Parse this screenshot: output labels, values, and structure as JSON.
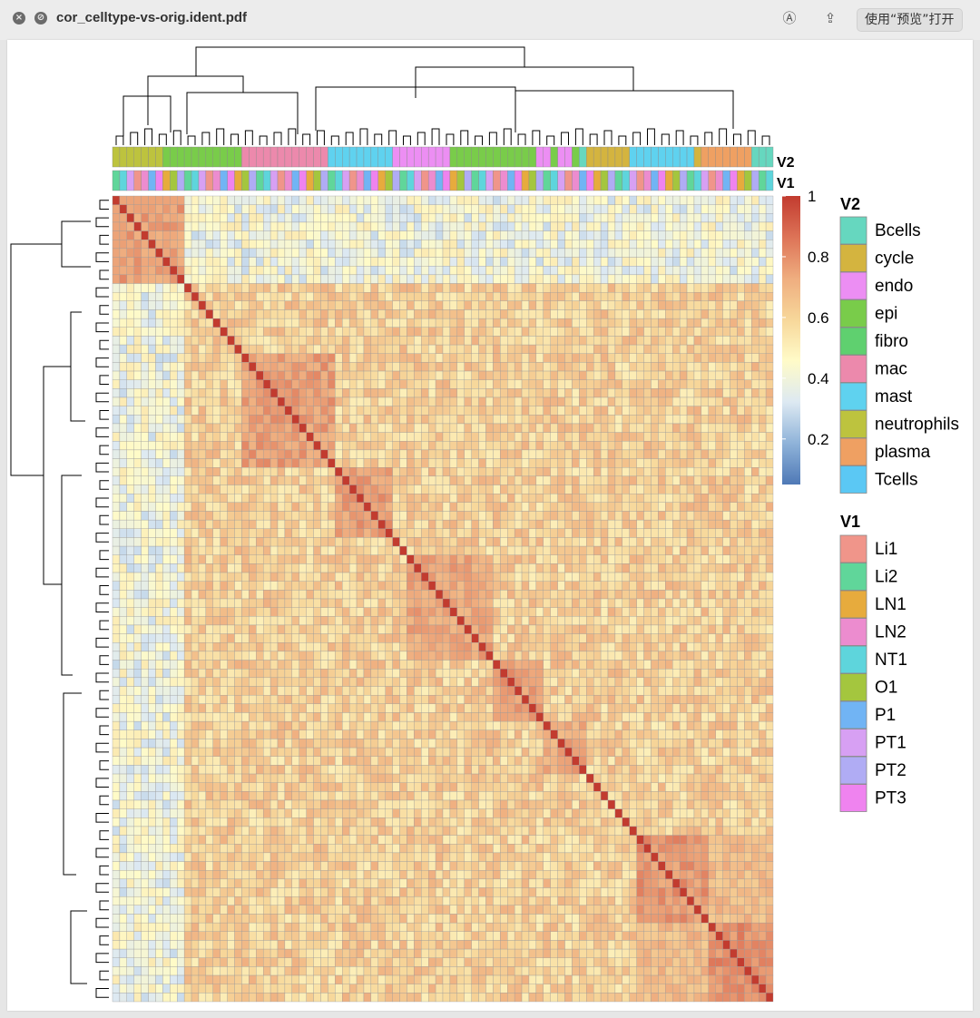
{
  "window": {
    "title": "cor_celltype-vs-orig.ident.pdf",
    "open_with_label": "使用“预览”打开"
  },
  "icons": {
    "close": "close-icon",
    "minimize": "minimize-icon",
    "markup": "markup-icon",
    "share": "share-icon"
  },
  "chart_data": {
    "type": "heatmap",
    "title": "",
    "row_count": 92,
    "col_count": 92,
    "annotation_labels": {
      "top": "V2",
      "bottom": "V1"
    },
    "colorbar": {
      "ticks": [
        "1",
        "0.8",
        "0.6",
        "0.4",
        "0.2"
      ],
      "tick_values": [
        1,
        0.8,
        0.6,
        0.4,
        0.2
      ],
      "range": [
        0.05,
        1
      ],
      "colors": [
        "#4f79b6",
        "#8fb3d9",
        "#dde9f2",
        "#fffbc8",
        "#f7d79a",
        "#efad7f",
        "#dd7357",
        "#c23b2f"
      ]
    },
    "cluster_blocks": [
      {
        "start": 1,
        "end": 9,
        "strength": 0.82
      },
      {
        "start": 18,
        "end": 30,
        "strength": 0.82
      },
      {
        "start": 31,
        "end": 38,
        "strength": 0.82
      },
      {
        "start": 41,
        "end": 52,
        "strength": 0.8
      },
      {
        "start": 50,
        "end": 59,
        "strength": 0.82
      },
      {
        "start": 60,
        "end": 65,
        "strength": 0.8
      },
      {
        "start": 73,
        "end": 82,
        "strength": 0.84
      },
      {
        "start": 83,
        "end": 91,
        "strength": 0.86
      }
    ],
    "legend_v2": {
      "title": "V2",
      "items": [
        {
          "label": "Bcells",
          "color": "#66d7bf"
        },
        {
          "label": "cycle",
          "color": "#d4b43f"
        },
        {
          "label": "endo",
          "color": "#ec8ef3"
        },
        {
          "label": "epi",
          "color": "#79cc4a"
        },
        {
          "label": "fibro",
          "color": "#5fd06f"
        },
        {
          "label": "mac",
          "color": "#ec89ac"
        },
        {
          "label": "mast",
          "color": "#5fd2ef"
        },
        {
          "label": "neutrophils",
          "color": "#bdc33e"
        },
        {
          "label": "plasma",
          "color": "#efa062"
        },
        {
          "label": "Tcells",
          "color": "#5bc8f4"
        }
      ]
    },
    "legend_v1": {
      "title": "V1",
      "items": [
        {
          "label": "Li1",
          "color": "#f0958a"
        },
        {
          "label": "Li2",
          "color": "#60d69a"
        },
        {
          "label": "LN1",
          "color": "#e7ab3d"
        },
        {
          "label": "LN2",
          "color": "#ec8ccf"
        },
        {
          "label": "NT1",
          "color": "#5ed5dc"
        },
        {
          "label": "O1",
          "color": "#a4c63e"
        },
        {
          "label": "P1",
          "color": "#71b4f4"
        },
        {
          "label": "PT1",
          "color": "#d7a0f3"
        },
        {
          "label": "PT2",
          "color": "#b0acf4"
        },
        {
          "label": "PT3",
          "color": "#ef83ef"
        }
      ]
    }
  }
}
